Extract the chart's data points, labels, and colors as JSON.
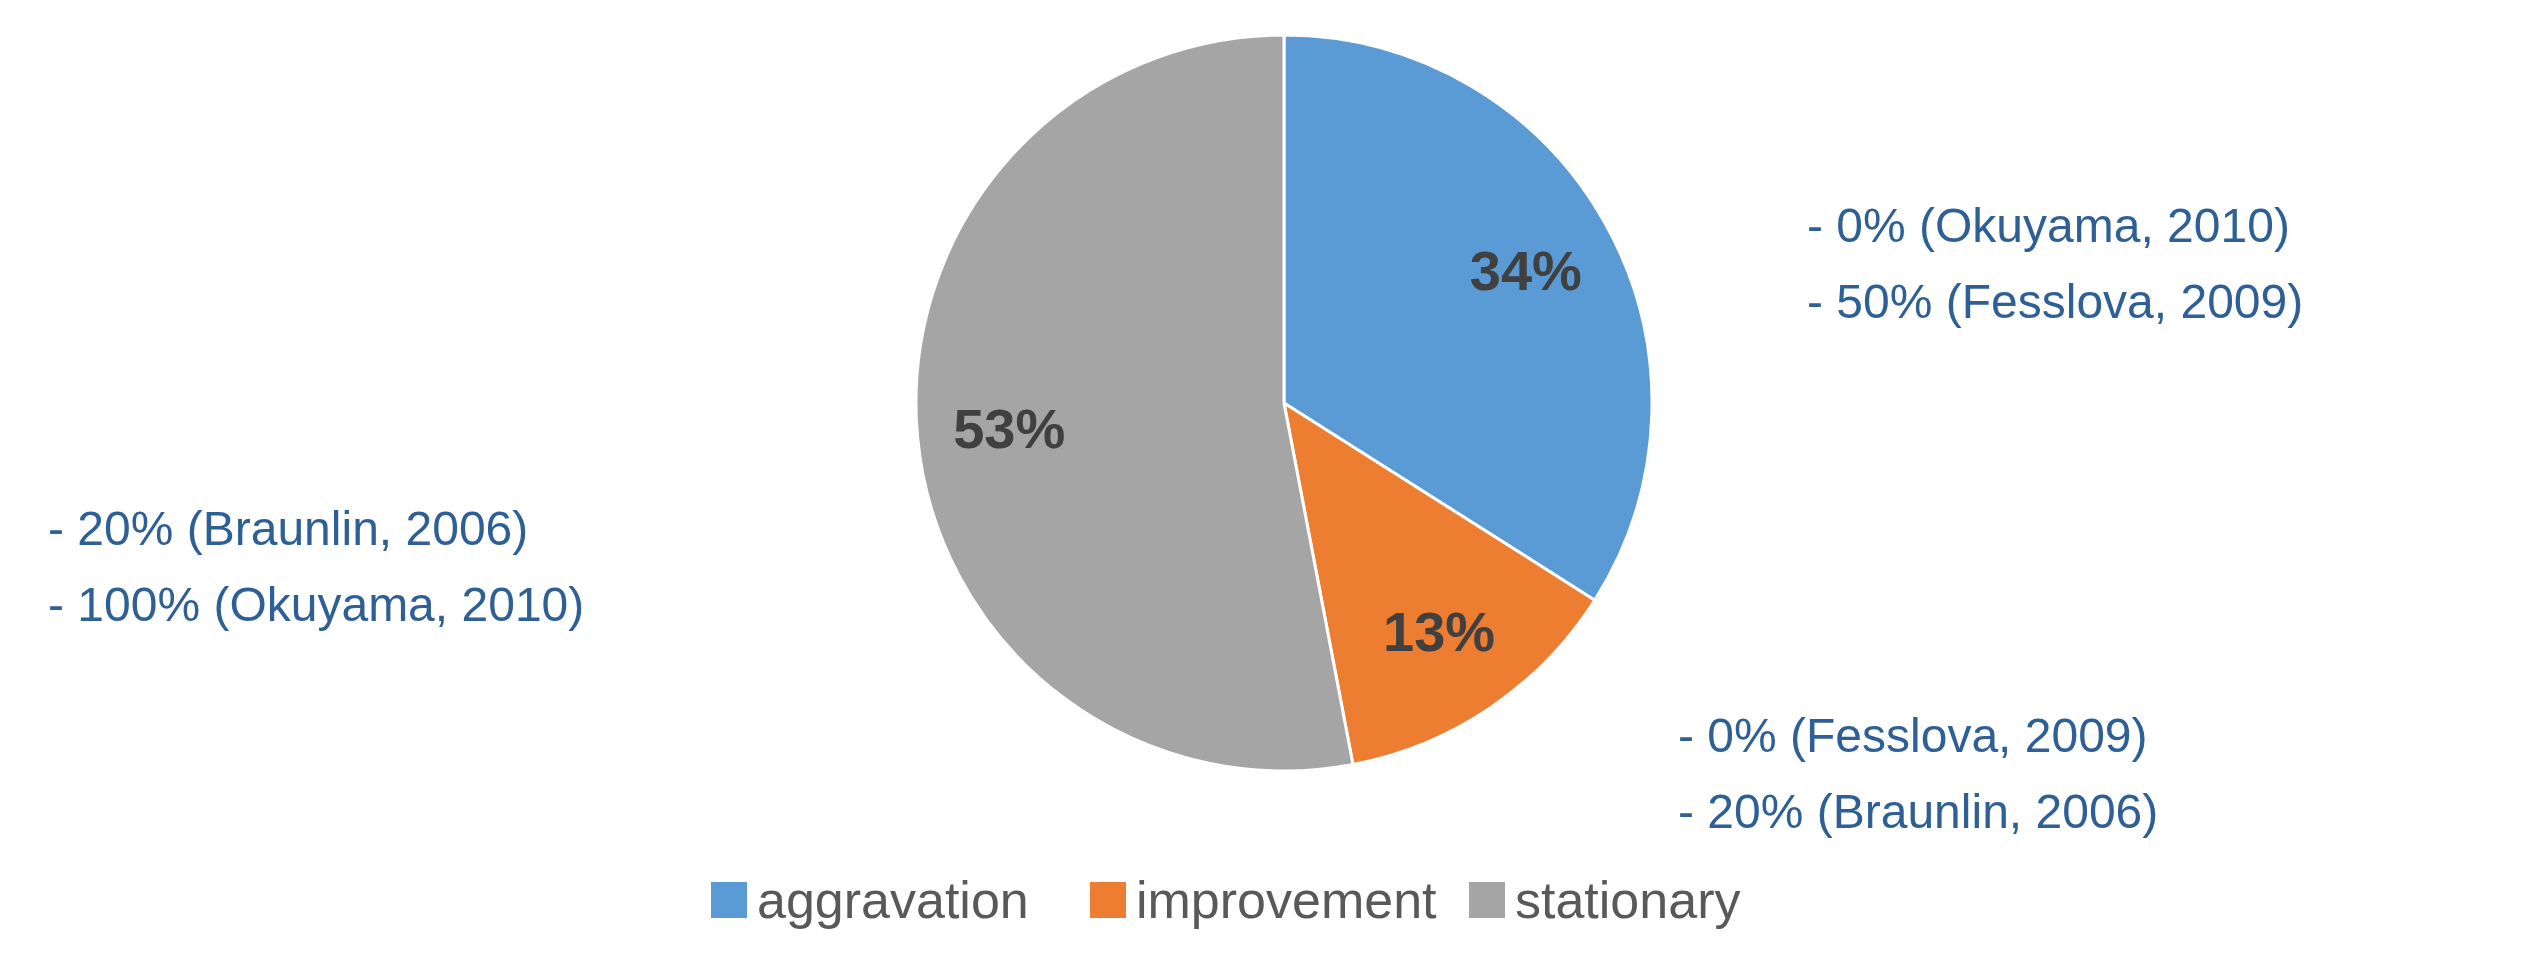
{
  "chart_data": {
    "type": "pie",
    "categories": [
      "aggravation",
      "improvement",
      "stationary"
    ],
    "values": [
      34,
      13,
      53
    ],
    "colors": [
      "#5b9bd5",
      "#ed7d31",
      "#a5a5a5"
    ],
    "value_labels": [
      "34%",
      "13%",
      "53%"
    ],
    "legend": "bottom",
    "annotations": [
      "- 0% (Okuyama, 2010)\n- 50% (Fesslova, 2009)",
      "- 0% (Fesslova, 2009)\n- 20% (Braunlin, 2006)",
      "- 20% (Braunlin, 2006)\n- 100% (Okuyama, 2010)"
    ]
  }
}
